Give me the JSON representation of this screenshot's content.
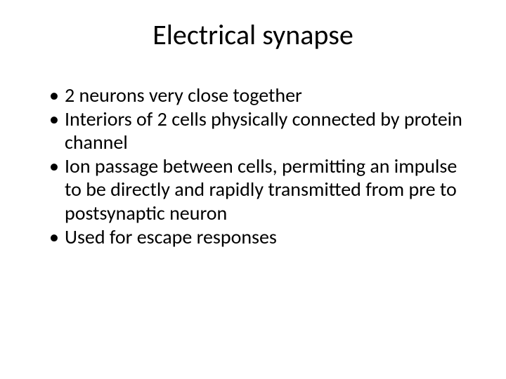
{
  "slide": {
    "title": "Electrical synapse",
    "bullets": [
      "2 neurons very close together",
      "Interiors of 2 cells physically connected by protein channel",
      "Ion passage between cells, permitting an impulse to be directly and rapidly transmitted from pre to postsynaptic neuron",
      "Used for escape responses"
    ],
    "colors": {
      "background": "#ffffff",
      "text": "#000000"
    },
    "typography": {
      "title_fontsize": 40,
      "body_fontsize": 28,
      "font_family": "Calibri"
    }
  }
}
